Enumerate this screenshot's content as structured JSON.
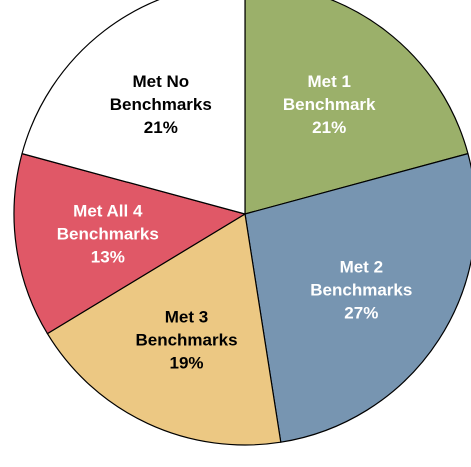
{
  "chart_data": {
    "type": "pie",
    "title": "",
    "legend": "none",
    "slices": [
      {
        "category": "Met 1 Benchmark",
        "value": 21,
        "label_lines": [
          "Met 1",
          "Benchmark",
          "21%"
        ],
        "color": "#9bb06a",
        "label_color": "#ffffff"
      },
      {
        "category": "Met 2 Benchmarks",
        "value": 27,
        "label_lines": [
          "Met 2",
          "Benchmarks",
          "27%"
        ],
        "color": "#7795b1",
        "label_color": "#ffffff"
      },
      {
        "category": "Met 3 Benchmarks",
        "value": 19,
        "label_lines": [
          "Met 3",
          "Benchmarks",
          "19%"
        ],
        "color": "#ecc883",
        "label_color": "#000000"
      },
      {
        "category": "Met All 4 Benchmarks",
        "value": 13,
        "label_lines": [
          "Met All 4",
          "Benchmarks",
          "13%"
        ],
        "color": "#e05867",
        "label_color": "#ffffff"
      },
      {
        "category": "Met No Benchmarks",
        "value": 21,
        "label_lines": [
          "Met No",
          "Benchmarks",
          "21%"
        ],
        "color": "#ffffff",
        "label_color": "#000000"
      }
    ]
  }
}
